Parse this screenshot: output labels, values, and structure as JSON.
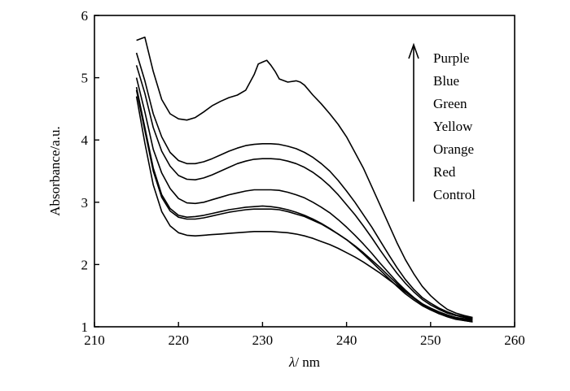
{
  "chart_data": {
    "type": "line",
    "xlabel_symbol": "λ",
    "xlabel_unit": "/ nm",
    "ylabel": "Absorbance/a.u.",
    "xlim": [
      210,
      260
    ],
    "ylim": [
      1,
      6
    ],
    "xticks": [
      210,
      220,
      230,
      240,
      250,
      260
    ],
    "yticks": [
      1,
      2,
      3,
      4,
      5,
      6
    ],
    "grid": false,
    "legend_position": "top-right",
    "legend": [
      "Purple",
      "Blue",
      "Green",
      "Yellow",
      "Orange",
      "Red",
      "Control"
    ],
    "legend_arrow": "up",
    "series": [
      {
        "name": "Purple",
        "color": "#000000",
        "x": [
          215,
          216,
          217,
          218,
          219,
          220,
          221,
          222,
          223,
          224,
          225,
          226,
          227,
          228,
          229,
          229.5,
          230,
          230.5,
          231,
          231.5,
          232,
          233,
          234,
          234.5,
          235,
          236,
          237,
          238,
          239,
          240,
          241,
          242,
          243,
          244,
          245,
          246,
          247,
          248,
          249,
          250,
          251,
          252,
          253,
          254,
          255
        ],
        "y": [
          5.6,
          5.65,
          5.1,
          4.65,
          4.42,
          4.34,
          4.32,
          4.36,
          4.45,
          4.55,
          4.62,
          4.68,
          4.72,
          4.8,
          5.05,
          5.22,
          5.25,
          5.28,
          5.2,
          5.1,
          4.98,
          4.93,
          4.95,
          4.93,
          4.88,
          4.72,
          4.58,
          4.42,
          4.25,
          4.05,
          3.8,
          3.55,
          3.25,
          2.95,
          2.65,
          2.35,
          2.08,
          1.85,
          1.65,
          1.5,
          1.38,
          1.28,
          1.22,
          1.18,
          1.15
        ]
      },
      {
        "name": "Blue",
        "color": "#000000",
        "x": [
          215,
          216,
          217,
          218,
          219,
          220,
          221,
          222,
          223,
          224,
          225,
          226,
          227,
          228,
          229,
          230,
          231,
          232,
          233,
          234,
          235,
          236,
          237,
          238,
          239,
          240,
          241,
          242,
          243,
          244,
          245,
          246,
          247,
          248,
          249,
          250,
          251,
          252,
          253,
          254,
          255
        ],
        "y": [
          5.4,
          4.95,
          4.42,
          4.05,
          3.8,
          3.67,
          3.62,
          3.62,
          3.65,
          3.7,
          3.76,
          3.82,
          3.87,
          3.91,
          3.93,
          3.94,
          3.94,
          3.93,
          3.9,
          3.86,
          3.8,
          3.72,
          3.62,
          3.5,
          3.35,
          3.18,
          3.0,
          2.8,
          2.6,
          2.38,
          2.16,
          1.95,
          1.76,
          1.6,
          1.47,
          1.38,
          1.3,
          1.24,
          1.19,
          1.16,
          1.14
        ]
      },
      {
        "name": "Green",
        "color": "#000000",
        "x": [
          215,
          216,
          217,
          218,
          219,
          220,
          221,
          222,
          223,
          224,
          225,
          226,
          227,
          228,
          229,
          230,
          231,
          232,
          233,
          234,
          235,
          236,
          237,
          238,
          239,
          240,
          241,
          242,
          243,
          244,
          245,
          246,
          247,
          248,
          249,
          250,
          251,
          252,
          253,
          254,
          255
        ],
        "y": [
          5.2,
          4.75,
          4.2,
          3.82,
          3.58,
          3.43,
          3.37,
          3.36,
          3.39,
          3.44,
          3.5,
          3.56,
          3.62,
          3.66,
          3.69,
          3.7,
          3.7,
          3.69,
          3.66,
          3.62,
          3.56,
          3.48,
          3.38,
          3.26,
          3.12,
          2.96,
          2.8,
          2.62,
          2.43,
          2.23,
          2.04,
          1.86,
          1.7,
          1.56,
          1.44,
          1.35,
          1.28,
          1.22,
          1.18,
          1.15,
          1.13
        ]
      },
      {
        "name": "Yellow",
        "color": "#000000",
        "x": [
          215,
          216,
          217,
          218,
          219,
          220,
          221,
          222,
          223,
          224,
          225,
          226,
          227,
          228,
          229,
          230,
          231,
          232,
          233,
          234,
          235,
          236,
          237,
          238,
          239,
          240,
          241,
          242,
          243,
          244,
          245,
          246,
          247,
          248,
          249,
          250,
          251,
          252,
          253,
          254,
          255
        ],
        "y": [
          5.0,
          4.45,
          3.85,
          3.47,
          3.22,
          3.06,
          2.99,
          2.98,
          3.0,
          3.04,
          3.08,
          3.12,
          3.15,
          3.18,
          3.2,
          3.2,
          3.2,
          3.19,
          3.16,
          3.12,
          3.07,
          3.0,
          2.92,
          2.83,
          2.72,
          2.6,
          2.47,
          2.33,
          2.18,
          2.02,
          1.87,
          1.72,
          1.59,
          1.47,
          1.37,
          1.3,
          1.24,
          1.19,
          1.15,
          1.13,
          1.12
        ]
      },
      {
        "name": "Orange",
        "color": "#000000",
        "x": [
          215,
          216,
          217,
          218,
          219,
          220,
          221,
          222,
          223,
          224,
          225,
          226,
          227,
          228,
          229,
          230,
          231,
          232,
          233,
          234,
          235,
          236,
          237,
          238,
          239,
          240,
          241,
          242,
          243,
          244,
          245,
          246,
          247,
          248,
          249,
          250,
          251,
          252,
          253,
          254,
          255
        ],
        "y": [
          4.85,
          4.2,
          3.55,
          3.12,
          2.9,
          2.79,
          2.76,
          2.77,
          2.79,
          2.82,
          2.85,
          2.88,
          2.9,
          2.92,
          2.93,
          2.94,
          2.93,
          2.91,
          2.88,
          2.84,
          2.79,
          2.73,
          2.66,
          2.58,
          2.49,
          2.4,
          2.29,
          2.17,
          2.04,
          1.91,
          1.78,
          1.65,
          1.53,
          1.43,
          1.34,
          1.27,
          1.21,
          1.17,
          1.14,
          1.12,
          1.1
        ]
      },
      {
        "name": "Red",
        "color": "#000000",
        "x": [
          215,
          216,
          217,
          218,
          219,
          220,
          221,
          222,
          223,
          224,
          225,
          226,
          227,
          228,
          229,
          230,
          231,
          232,
          233,
          234,
          235,
          236,
          237,
          238,
          239,
          240,
          241,
          242,
          243,
          244,
          245,
          246,
          247,
          248,
          249,
          250,
          251,
          252,
          253,
          254,
          255
        ],
        "y": [
          4.8,
          4.15,
          3.5,
          3.08,
          2.86,
          2.76,
          2.73,
          2.73,
          2.75,
          2.78,
          2.81,
          2.84,
          2.86,
          2.88,
          2.89,
          2.89,
          2.89,
          2.88,
          2.85,
          2.81,
          2.77,
          2.71,
          2.65,
          2.57,
          2.49,
          2.4,
          2.3,
          2.19,
          2.07,
          1.95,
          1.82,
          1.69,
          1.57,
          1.46,
          1.36,
          1.28,
          1.21,
          1.16,
          1.12,
          1.1,
          1.08
        ]
      },
      {
        "name": "Control",
        "color": "#000000",
        "x": [
          215,
          216,
          217,
          218,
          219,
          220,
          221,
          222,
          223,
          224,
          225,
          226,
          227,
          228,
          229,
          230,
          231,
          232,
          233,
          234,
          235,
          236,
          237,
          238,
          239,
          240,
          241,
          242,
          243,
          244,
          245,
          246,
          247,
          248,
          249,
          250,
          251,
          252,
          253,
          254,
          255
        ],
        "y": [
          4.7,
          3.95,
          3.28,
          2.85,
          2.62,
          2.51,
          2.47,
          2.46,
          2.47,
          2.48,
          2.49,
          2.5,
          2.51,
          2.52,
          2.53,
          2.53,
          2.53,
          2.52,
          2.51,
          2.49,
          2.46,
          2.42,
          2.37,
          2.32,
          2.26,
          2.19,
          2.12,
          2.04,
          1.95,
          1.86,
          1.76,
          1.66,
          1.56,
          1.46,
          1.37,
          1.29,
          1.22,
          1.17,
          1.13,
          1.1,
          1.08
        ]
      }
    ]
  }
}
